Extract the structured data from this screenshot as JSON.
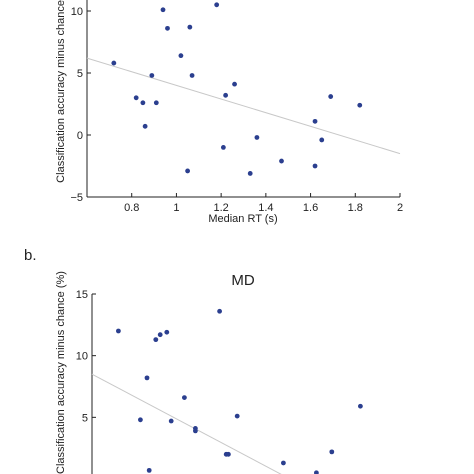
{
  "colors": {
    "point": "#2b3f8f",
    "fit_line": "#c8c8c8",
    "axis": "#222222"
  },
  "chart_data": [
    {
      "type": "scatter",
      "title": "",
      "xlabel": "Median RT (s)",
      "ylabel": "Classification accuracy minus chance",
      "xlim": [
        0.6,
        2.0
      ],
      "ylim": [
        -5,
        10
      ],
      "xticks": [
        0.8,
        1,
        1.2,
        1.4,
        1.6,
        1.8,
        2
      ],
      "xtick_labels": [
        "0.8",
        "1",
        "1.2",
        "1.4",
        "1.6",
        "1.8",
        "2"
      ],
      "yticks": [
        -5,
        0,
        5,
        10
      ],
      "ytick_labels": [
        "−5",
        "0",
        "5",
        "10"
      ],
      "grid": false,
      "points": [
        {
          "x": 0.72,
          "y": 5.8
        },
        {
          "x": 0.82,
          "y": 3.0
        },
        {
          "x": 0.85,
          "y": 2.6
        },
        {
          "x": 0.86,
          "y": 0.7
        },
        {
          "x": 0.89,
          "y": 4.8
        },
        {
          "x": 0.91,
          "y": 2.6
        },
        {
          "x": 0.94,
          "y": 10.1
        },
        {
          "x": 0.96,
          "y": 8.6
        },
        {
          "x": 1.02,
          "y": 6.4
        },
        {
          "x": 1.05,
          "y": -2.9
        },
        {
          "x": 1.06,
          "y": 8.7
        },
        {
          "x": 1.07,
          "y": 4.8
        },
        {
          "x": 1.18,
          "y": 10.5
        },
        {
          "x": 1.21,
          "y": -1.0
        },
        {
          "x": 1.22,
          "y": 3.2
        },
        {
          "x": 1.26,
          "y": 4.1
        },
        {
          "x": 1.33,
          "y": -3.1
        },
        {
          "x": 1.36,
          "y": -0.2
        },
        {
          "x": 1.47,
          "y": -2.1
        },
        {
          "x": 1.62,
          "y": 1.1
        },
        {
          "x": 1.62,
          "y": -2.5
        },
        {
          "x": 1.65,
          "y": -0.4
        },
        {
          "x": 1.69,
          "y": 3.1
        },
        {
          "x": 1.82,
          "y": 2.4
        }
      ],
      "fit_line": [
        {
          "x": 0.6,
          "y": 6.2
        },
        {
          "x": 2.0,
          "y": -1.5
        }
      ]
    },
    {
      "type": "scatter",
      "panel_label": "b.",
      "title": "MD",
      "xlabel": "",
      "ylabel": "Classification accuracy minus chance (%)",
      "xlim": [
        0.6,
        2.0
      ],
      "ylim": [
        0,
        15
      ],
      "yticks": [
        5,
        10,
        15
      ],
      "ytick_labels": [
        "5",
        "10",
        "15"
      ],
      "grid": false,
      "points": [
        {
          "x": 0.72,
          "y": 12.0
        },
        {
          "x": 0.82,
          "y": 4.8
        },
        {
          "x": 0.85,
          "y": 8.2
        },
        {
          "x": 0.86,
          "y": 0.7
        },
        {
          "x": 0.89,
          "y": 11.3
        },
        {
          "x": 0.91,
          "y": 11.7
        },
        {
          "x": 0.94,
          "y": 11.9
        },
        {
          "x": 0.96,
          "y": 4.7
        },
        {
          "x": 1.02,
          "y": 6.6
        },
        {
          "x": 1.07,
          "y": 4.1
        },
        {
          "x": 1.07,
          "y": 3.9
        },
        {
          "x": 1.18,
          "y": 13.6
        },
        {
          "x": 1.21,
          "y": 2.0
        },
        {
          "x": 1.22,
          "y": 2.0
        },
        {
          "x": 1.26,
          "y": 5.1
        },
        {
          "x": 1.47,
          "y": 1.3
        },
        {
          "x": 1.62,
          "y": 0.5
        },
        {
          "x": 1.69,
          "y": 2.2
        },
        {
          "x": 1.82,
          "y": 5.9
        }
      ],
      "fit_line": [
        {
          "x": 0.6,
          "y": 8.5
        },
        {
          "x": 1.5,
          "y": 0.0
        }
      ]
    }
  ]
}
